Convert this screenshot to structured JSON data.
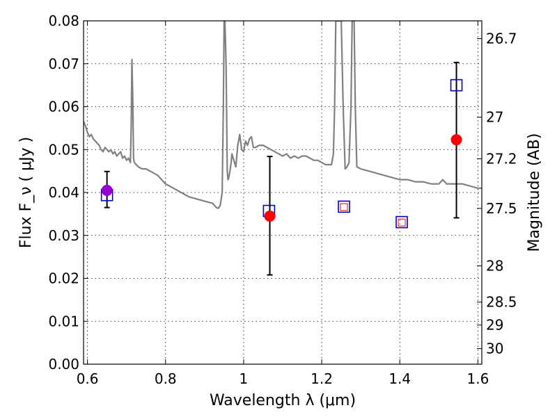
{
  "chart_data": {
    "type": "scatter",
    "title": "",
    "xlabel": "Wavelength  λ (μm)",
    "ylabel": "Flux  F_ν  ( μJy )",
    "ylabel_right": "Magnitude (AB)",
    "xlim": [
      0.59,
      1.61
    ],
    "ylim": [
      0.0,
      0.08
    ],
    "grid": true,
    "x_ticks": [
      {
        "value": 0.6,
        "label": "0.6"
      },
      {
        "value": 0.8,
        "label": "0.8"
      },
      {
        "value": 1.0,
        "label": "1"
      },
      {
        "value": 1.2,
        "label": "1.2"
      },
      {
        "value": 1.4,
        "label": "1.4"
      },
      {
        "value": 1.6,
        "label": "1.6"
      }
    ],
    "y_ticks": [
      {
        "value": 0.0,
        "label": "0.00"
      },
      {
        "value": 0.01,
        "label": "0.01"
      },
      {
        "value": 0.02,
        "label": "0.02"
      },
      {
        "value": 0.03,
        "label": "0.03"
      },
      {
        "value": 0.04,
        "label": "0.04"
      },
      {
        "value": 0.05,
        "label": "0.05"
      },
      {
        "value": 0.06,
        "label": "0.06"
      },
      {
        "value": 0.07,
        "label": "0.07"
      },
      {
        "value": 0.08,
        "label": "0.08"
      }
    ],
    "right_ticks": [
      {
        "label": "26.7",
        "mag": 26.7
      },
      {
        "label": "27",
        "mag": 27.0
      },
      {
        "label": "27.2",
        "mag": 27.2
      },
      {
        "label": "27.5",
        "mag": 27.5
      },
      {
        "label": "28",
        "mag": 28.0
      },
      {
        "label": "28.5",
        "mag": 28.5
      },
      {
        "label": "29",
        "mag": 29.0
      },
      {
        "label": "30",
        "mag": 30.0
      }
    ],
    "series": [
      {
        "name": "model spectrum",
        "kind": "line",
        "color": "#808080",
        "x": [
          0.59,
          0.595,
          0.6,
          0.605,
          0.61,
          0.615,
          0.62,
          0.625,
          0.63,
          0.635,
          0.64,
          0.645,
          0.65,
          0.655,
          0.66,
          0.665,
          0.67,
          0.675,
          0.68,
          0.685,
          0.69,
          0.695,
          0.7,
          0.705,
          0.71,
          0.712,
          0.714,
          0.716,
          0.718,
          0.72,
          0.725,
          0.73,
          0.74,
          0.75,
          0.76,
          0.77,
          0.78,
          0.79,
          0.8,
          0.82,
          0.84,
          0.86,
          0.88,
          0.9,
          0.92,
          0.93,
          0.935,
          0.94,
          0.945,
          0.948,
          0.95,
          0.952,
          0.955,
          0.958,
          0.96,
          0.962,
          0.965,
          0.968,
          0.97,
          0.975,
          0.98,
          0.985,
          0.99,
          0.995,
          1.0,
          1.005,
          1.01,
          1.015,
          1.02,
          1.025,
          1.03,
          1.04,
          1.05,
          1.06,
          1.07,
          1.08,
          1.09,
          1.1,
          1.11,
          1.12,
          1.13,
          1.14,
          1.15,
          1.16,
          1.17,
          1.18,
          1.19,
          1.2,
          1.21,
          1.22,
          1.225,
          1.23,
          1.233,
          1.236,
          1.24,
          1.245,
          1.25,
          1.255,
          1.26,
          1.265,
          1.27,
          1.275,
          1.278,
          1.28,
          1.283,
          1.286,
          1.29,
          1.3,
          1.32,
          1.34,
          1.36,
          1.38,
          1.4,
          1.42,
          1.44,
          1.46,
          1.48,
          1.5,
          1.505,
          1.51,
          1.52,
          1.54,
          1.56,
          1.58,
          1.6,
          1.61
        ],
        "y": [
          0.0565,
          0.0555,
          0.054,
          0.053,
          0.0535,
          0.0525,
          0.052,
          0.0515,
          0.051,
          0.05,
          0.0495,
          0.0505,
          0.05,
          0.0495,
          0.05,
          0.049,
          0.0495,
          0.0485,
          0.049,
          0.0495,
          0.048,
          0.0485,
          0.0475,
          0.048,
          0.047,
          0.055,
          0.071,
          0.062,
          0.048,
          0.047,
          0.0465,
          0.046,
          0.0455,
          0.0455,
          0.045,
          0.0445,
          0.044,
          0.043,
          0.042,
          0.041,
          0.04,
          0.039,
          0.0385,
          0.038,
          0.0375,
          0.0365,
          0.0363,
          0.037,
          0.04,
          0.06,
          0.08,
          0.08,
          0.07,
          0.045,
          0.043,
          0.0435,
          0.045,
          0.047,
          0.049,
          0.0475,
          0.046,
          0.051,
          0.0535,
          0.05,
          0.0495,
          0.052,
          0.051,
          0.0525,
          0.053,
          0.0505,
          0.0505,
          0.051,
          0.051,
          0.0505,
          0.05,
          0.0495,
          0.049,
          0.0485,
          0.049,
          0.048,
          0.0485,
          0.048,
          0.0485,
          0.0485,
          0.048,
          0.0475,
          0.0475,
          0.047,
          0.0465,
          0.0465,
          0.0465,
          0.049,
          0.06,
          0.08,
          0.08,
          0.08,
          0.08,
          0.06,
          0.0455,
          0.046,
          0.047,
          0.06,
          0.08,
          0.08,
          0.08,
          0.06,
          0.046,
          0.0455,
          0.045,
          0.0445,
          0.044,
          0.0435,
          0.043,
          0.043,
          0.0425,
          0.0425,
          0.042,
          0.042,
          0.0425,
          0.043,
          0.042,
          0.042,
          0.042,
          0.0415,
          0.041,
          0.041
        ],
        "note": "values above 0.08 are clipped at the top of the plot"
      },
      {
        "name": "observed blue squares",
        "kind": "marker",
        "marker": "square",
        "color": "#0000cc",
        "x": [
          0.65,
          1.065,
          1.257,
          1.405,
          1.545
        ],
        "y": [
          0.0394,
          0.0357,
          0.0367,
          0.0331,
          0.065
        ]
      },
      {
        "name": "small red squares",
        "kind": "marker",
        "marker": "small-square",
        "color": "#ee0000",
        "x": [
          1.257,
          1.405
        ],
        "y": [
          0.0366,
          0.033
        ]
      },
      {
        "name": "red circles",
        "kind": "marker",
        "marker": "circle",
        "color": "#ff0000",
        "x": [
          1.067,
          1.545
        ],
        "y": [
          0.0345,
          0.0523
        ]
      },
      {
        "name": "purple circle",
        "kind": "marker",
        "marker": "circle",
        "color": "#9400d3",
        "x": [
          0.65
        ],
        "y": [
          0.0405
        ]
      }
    ],
    "error_bars": [
      {
        "x": 0.65,
        "low": 0.0365,
        "high": 0.0449
      },
      {
        "x": 1.067,
        "low": 0.0208,
        "high": 0.0484
      },
      {
        "x": 1.545,
        "low": 0.0341,
        "high": 0.0703
      }
    ]
  }
}
